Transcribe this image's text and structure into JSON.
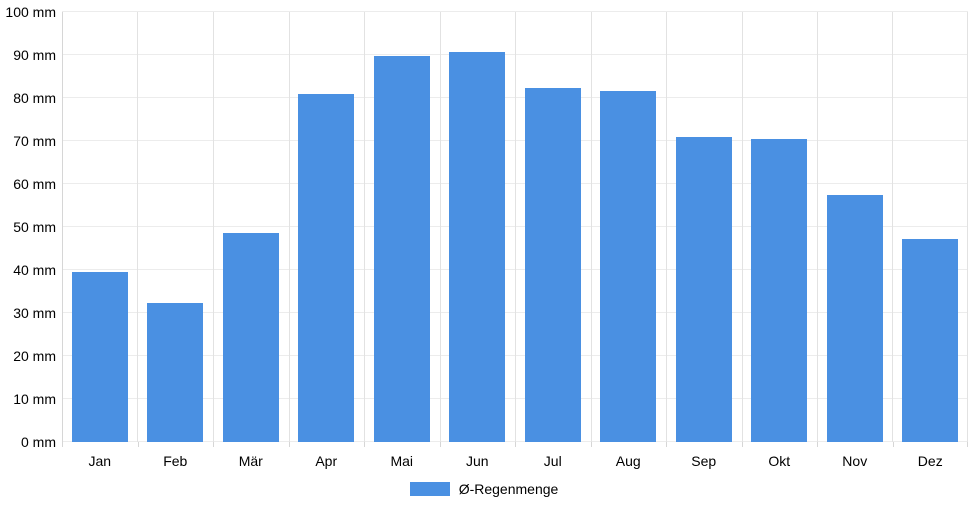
{
  "chart_data": {
    "type": "bar",
    "title": "",
    "xlabel": "",
    "ylabel": "",
    "categories": [
      "Jan",
      "Feb",
      "Mär",
      "Apr",
      "Mai",
      "Jun",
      "Jul",
      "Aug",
      "Sep",
      "Okt",
      "Nov",
      "Dez"
    ],
    "series": [
      {
        "name": "Ø-Regenmenge",
        "values": [
          39.5,
          32.4,
          48.6,
          80.9,
          89.8,
          90.7,
          82.3,
          81.6,
          71.0,
          70.5,
          57.4,
          47.1
        ],
        "color": "#4a90e2"
      }
    ],
    "ylim": [
      0,
      100
    ],
    "y_ticks": [
      0,
      10,
      20,
      30,
      40,
      50,
      60,
      70,
      80,
      90,
      100
    ],
    "y_tick_labels": [
      "0 mm",
      "10 mm",
      "20 mm",
      "30 mm",
      "40 mm",
      "50 mm",
      "60 mm",
      "70 mm",
      "80 mm",
      "90 mm",
      "100 mm"
    ],
    "grid": true,
    "legend_position": "bottom"
  },
  "legend": {
    "label": "Ø-Regenmenge",
    "swatch_color": "#4a90e2"
  },
  "colors": {
    "bar": "#4a90e2",
    "hgrid": "#ececec",
    "vgrid": "#e2e2e2",
    "axis": "#d6d6d6",
    "text": "#000000",
    "background": "#ffffff"
  }
}
